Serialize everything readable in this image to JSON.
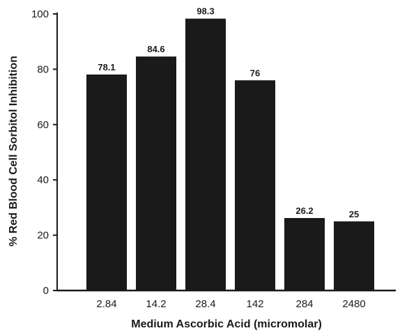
{
  "chart_data": {
    "type": "bar",
    "title": "",
    "xlabel": "Medium Ascorbic Acid (micromolar)",
    "ylabel": "% Red Blood Cell Sorbitol Inhibition",
    "categories": [
      "2.84",
      "14.2",
      "28.4",
      "142",
      "284",
      "2480"
    ],
    "values": [
      78.1,
      84.6,
      98.3,
      76,
      26.2,
      25
    ],
    "data_labels": [
      "78.1",
      "84.6",
      "98.3",
      "76",
      "26.2",
      "25"
    ],
    "ylim": [
      0,
      100
    ],
    "yticks": [
      0,
      20,
      40,
      60,
      80,
      100
    ],
    "ytick_labels": [
      "0",
      "20",
      "40",
      "60",
      "80",
      "100"
    ],
    "grid": false,
    "legend": "none",
    "colors": {
      "bar": "#1a1a1a",
      "axis": "#1a1a1a",
      "text": "#1a1a1a"
    }
  }
}
